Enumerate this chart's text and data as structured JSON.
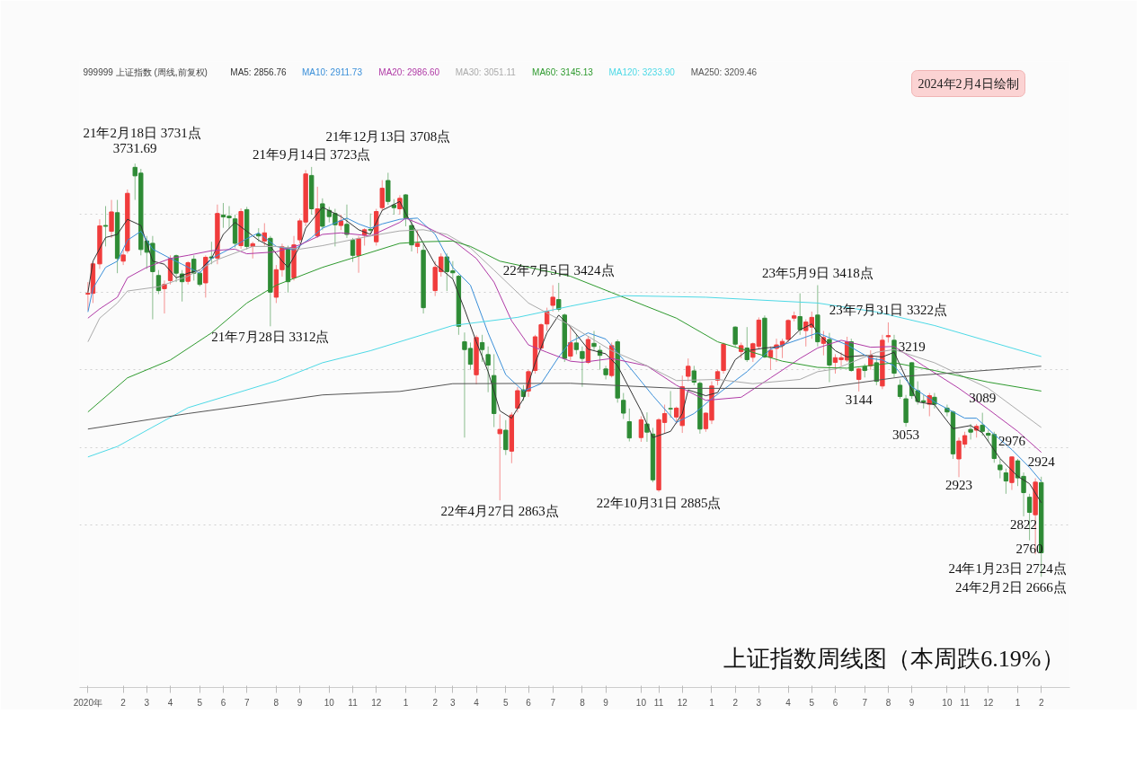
{
  "chart_data": {
    "type": "candlestick",
    "title": "上证指数周线图（本周跌6.19%）",
    "legend_title": "999999 上证指数 (周线,前复权)",
    "legend": "top left",
    "grid": "y",
    "tick_labels": "x",
    "xlim": [
      "2020-12-15",
      "2024-03-07"
    ],
    "yticks": [
      {
        "value": 2800,
        "label": null
      },
      {
        "value": 3000,
        "label": null
      },
      {
        "value": 3200,
        "label": null
      },
      {
        "value": 3400,
        "label": null
      },
      {
        "value": 3600,
        "label": null
      }
    ],
    "xticks": [
      {
        "value": "2020-12-25",
        "label": "2020年"
      },
      {
        "value": "2021-02-05",
        "label": "2"
      },
      {
        "value": "2021-03-05",
        "label": "3"
      },
      {
        "value": "2021-04-02",
        "label": "4"
      },
      {
        "value": "2021-05-07",
        "label": "5"
      },
      {
        "value": "2021-06-04",
        "label": "6"
      },
      {
        "value": "2021-07-02",
        "label": "7"
      },
      {
        "value": "2021-08-06",
        "label": "8"
      },
      {
        "value": "2021-09-03",
        "label": "9"
      },
      {
        "value": "2021-10-08",
        "label": "10"
      },
      {
        "value": "2021-11-05",
        "label": "11"
      },
      {
        "value": "2021-12-03",
        "label": "12"
      },
      {
        "value": "2022-01-07",
        "label": "1"
      },
      {
        "value": "2022-02-11",
        "label": "2"
      },
      {
        "value": "2022-03-04",
        "label": "3"
      },
      {
        "value": "2022-04-01",
        "label": "4"
      },
      {
        "value": "2022-05-06",
        "label": "5"
      },
      {
        "value": "2022-06-02",
        "label": "6"
      },
      {
        "value": "2022-07-01",
        "label": "7"
      },
      {
        "value": "2022-08-05",
        "label": "8"
      },
      {
        "value": "2022-09-02",
        "label": "9"
      },
      {
        "value": "2022-10-14",
        "label": "10"
      },
      {
        "value": "2022-11-04",
        "label": "11"
      },
      {
        "value": "2022-12-02",
        "label": "12"
      },
      {
        "value": "2023-01-06",
        "label": "1"
      },
      {
        "value": "2023-02-03",
        "label": "2"
      },
      {
        "value": "2023-03-03",
        "label": "3"
      },
      {
        "value": "2023-04-07",
        "label": "4"
      },
      {
        "value": "2023-05-05",
        "label": "5"
      },
      {
        "value": "2023-06-02",
        "label": "6"
      },
      {
        "value": "2023-07-07",
        "label": "7"
      },
      {
        "value": "2023-08-04",
        "label": "8"
      },
      {
        "value": "2023-09-01",
        "label": "9"
      },
      {
        "value": "2023-10-13",
        "label": "10"
      },
      {
        "value": "2023-11-03",
        "label": "11"
      },
      {
        "value": "2023-12-01",
        "label": "12"
      },
      {
        "value": "2024-01-05",
        "label": "1"
      },
      {
        "value": "2024-02-02",
        "label": "2"
      }
    ],
    "x": [
      "2020-12-25",
      "2020-12-31",
      "2021-01-08",
      "2021-01-15",
      "2021-01-22",
      "2021-01-29",
      "2021-02-05",
      "2021-02-10",
      "2021-02-19",
      "2021-02-26",
      "2021-03-05",
      "2021-03-12",
      "2021-03-19",
      "2021-03-26",
      "2021-04-02",
      "2021-04-09",
      "2021-04-16",
      "2021-04-23",
      "2021-04-30",
      "2021-05-07",
      "2021-05-14",
      "2021-05-21",
      "2021-05-28",
      "2021-06-04",
      "2021-06-11",
      "2021-06-18",
      "2021-06-25",
      "2021-07-02",
      "2021-07-09",
      "2021-07-16",
      "2021-07-23",
      "2021-07-30",
      "2021-08-06",
      "2021-08-13",
      "2021-08-20",
      "2021-08-27",
      "2021-09-03",
      "2021-09-10",
      "2021-09-17",
      "2021-09-24",
      "2021-09-30",
      "2021-10-08",
      "2021-10-15",
      "2021-10-22",
      "2021-10-29",
      "2021-11-05",
      "2021-11-12",
      "2021-11-19",
      "2021-11-26",
      "2021-12-03",
      "2021-12-10",
      "2021-12-17",
      "2021-12-24",
      "2021-12-31",
      "2022-01-07",
      "2022-01-14",
      "2022-01-21",
      "2022-01-28",
      "2022-02-11",
      "2022-02-18",
      "2022-02-25",
      "2022-03-04",
      "2022-03-11",
      "2022-03-18",
      "2022-03-25",
      "2022-04-01",
      "2022-04-08",
      "2022-04-15",
      "2022-04-22",
      "2022-04-29",
      "2022-05-06",
      "2022-05-13",
      "2022-05-20",
      "2022-05-27",
      "2022-06-02",
      "2022-06-10",
      "2022-06-17",
      "2022-06-24",
      "2022-07-01",
      "2022-07-08",
      "2022-07-15",
      "2022-07-22",
      "2022-07-29",
      "2022-08-05",
      "2022-08-12",
      "2022-08-19",
      "2022-08-26",
      "2022-09-02",
      "2022-09-09",
      "2022-09-16",
      "2022-09-23",
      "2022-09-30",
      "2022-10-14",
      "2022-10-21",
      "2022-10-28",
      "2022-11-04",
      "2022-11-11",
      "2022-11-18",
      "2022-11-25",
      "2022-12-02",
      "2022-12-09",
      "2022-12-16",
      "2022-12-23",
      "2022-12-30",
      "2023-01-06",
      "2023-01-13",
      "2023-01-20",
      "2023-02-03",
      "2023-02-10",
      "2023-02-17",
      "2023-02-24",
      "2023-03-03",
      "2023-03-10",
      "2023-03-17",
      "2023-03-24",
      "2023-03-31",
      "2023-04-07",
      "2023-04-14",
      "2023-04-21",
      "2023-04-28",
      "2023-05-05",
      "2023-05-12",
      "2023-05-19",
      "2023-05-26",
      "2023-06-02",
      "2023-06-09",
      "2023-06-16",
      "2023-06-21",
      "2023-06-30",
      "2023-07-07",
      "2023-07-14",
      "2023-07-21",
      "2023-07-28",
      "2023-08-04",
      "2023-08-11",
      "2023-08-18",
      "2023-08-25",
      "2023-09-01",
      "2023-09-08",
      "2023-09-15",
      "2023-09-22",
      "2023-09-28",
      "2023-10-13",
      "2023-10-20",
      "2023-10-27",
      "2023-11-03",
      "2023-11-10",
      "2023-11-17",
      "2023-11-24",
      "2023-12-01",
      "2023-12-08",
      "2023-12-15",
      "2023-12-22",
      "2023-12-29",
      "2024-01-05",
      "2024-01-12",
      "2024-01-19",
      "2024-01-26",
      "2024-02-02"
    ],
    "ohlc": [
      [
        3395,
        3426,
        3353,
        3397
      ],
      [
        3397,
        3476,
        3372,
        3473
      ],
      [
        3473,
        3588,
        3460,
        3571
      ],
      [
        3572,
        3622,
        3518,
        3570
      ],
      [
        3557,
        3638,
        3540,
        3607
      ],
      [
        3605,
        3638,
        3449,
        3487
      ],
      [
        3480,
        3510,
        3470,
        3496
      ],
      [
        3507,
        3665,
        3500,
        3655
      ],
      [
        3722,
        3731.69,
        3638,
        3700
      ],
      [
        3707,
        3718,
        3495,
        3510
      ],
      [
        3532,
        3545,
        3460,
        3503
      ],
      [
        3526,
        3545,
        3330,
        3453
      ],
      [
        3443,
        3457,
        3395,
        3404
      ],
      [
        3409,
        3430,
        3345,
        3420
      ],
      [
        3430,
        3495,
        3420,
        3487
      ],
      [
        3494,
        3497,
        3426,
        3449
      ],
      [
        3447,
        3457,
        3376,
        3427
      ],
      [
        3428,
        3480,
        3420,
        3476
      ],
      [
        3485,
        3495,
        3430,
        3449
      ],
      [
        3449,
        3455,
        3415,
        3420
      ],
      [
        3424,
        3495,
        3386,
        3490
      ],
      [
        3491,
        3530,
        3472,
        3488
      ],
      [
        3488,
        3626,
        3472,
        3603
      ],
      [
        3599,
        3630,
        3566,
        3594
      ],
      [
        3596,
        3622,
        3564,
        3592
      ],
      [
        3589,
        3600,
        3515,
        3526
      ],
      [
        3520,
        3616,
        3512,
        3608
      ],
      [
        3613,
        3620,
        3510,
        3518
      ],
      [
        3518,
        3530,
        3487,
        3525
      ],
      [
        3550,
        3565,
        3530,
        3545
      ],
      [
        3532,
        3578,
        3520,
        3553
      ],
      [
        3539,
        3545,
        3312,
        3400
      ],
      [
        3387,
        3470,
        3372,
        3458
      ],
      [
        3458,
        3525,
        3440,
        3517
      ],
      [
        3514,
        3520,
        3399,
        3427
      ],
      [
        3437,
        3545,
        3430,
        3522
      ],
      [
        3535,
        3590,
        3525,
        3584
      ],
      [
        3581,
        3715,
        3570,
        3705
      ],
      [
        3701,
        3723,
        3600,
        3615
      ],
      [
        3545,
        3672,
        3540,
        3615
      ],
      [
        3628,
        3642,
        3560,
        3570
      ],
      [
        3611,
        3620,
        3580,
        3595
      ],
      [
        3603,
        3615,
        3518,
        3574
      ],
      [
        3572,
        3600,
        3560,
        3584
      ],
      [
        3575,
        3626,
        3540,
        3549
      ],
      [
        3534,
        3540,
        3478,
        3495
      ],
      [
        3495,
        3545,
        3450,
        3538
      ],
      [
        3547,
        3565,
        3520,
        3561
      ],
      [
        3562,
        3603,
        3550,
        3560
      ],
      [
        3530,
        3615,
        3520,
        3608
      ],
      [
        3618,
        3689,
        3610,
        3668
      ],
      [
        3688,
        3708,
        3625,
        3634
      ],
      [
        3625,
        3640,
        3600,
        3618
      ],
      [
        3615,
        3650,
        3600,
        3642
      ],
      [
        3651,
        3653,
        3570,
        3591
      ],
      [
        3572,
        3590,
        3505,
        3522
      ],
      [
        3518,
        3560,
        3500,
        3526
      ],
      [
        3508,
        3525,
        3345,
        3360
      ],
      [
        3404,
        3480,
        3390,
        3464
      ],
      [
        3453,
        3500,
        3440,
        3491
      ],
      [
        3491,
        3500,
        3403,
        3453
      ],
      [
        3455,
        3480,
        3435,
        3450
      ],
      [
        3441,
        3445,
        3290,
        3312
      ],
      [
        3272,
        3296,
        3025,
        3252
      ],
      [
        3255,
        3270,
        3200,
        3214
      ],
      [
        3187,
        3289,
        3162,
        3283
      ],
      [
        3270,
        3290,
        3220,
        3252
      ],
      [
        3239,
        3260,
        3142,
        3212
      ],
      [
        3185,
        3240,
        3052,
        3087
      ],
      [
        3035,
        3085,
        2863,
        3046
      ],
      [
        3044,
        3070,
        2980,
        2994
      ],
      [
        2990,
        3090,
        2959,
        3083
      ],
      [
        3101,
        3155,
        3090,
        3146
      ],
      [
        3148,
        3160,
        3120,
        3131
      ],
      [
        3145,
        3200,
        3130,
        3195
      ],
      [
        3198,
        3290,
        3190,
        3285
      ],
      [
        3256,
        3320,
        3250,
        3316
      ],
      [
        3318,
        3360,
        3300,
        3351
      ],
      [
        3366,
        3418,
        3350,
        3387
      ],
      [
        3381,
        3424,
        3350,
        3356
      ],
      [
        3341,
        3345,
        3220,
        3229
      ],
      [
        3235,
        3310,
        3225,
        3270
      ],
      [
        3269,
        3290,
        3240,
        3252
      ],
      [
        3247,
        3260,
        3156,
        3229
      ],
      [
        3219,
        3285,
        3215,
        3278
      ],
      [
        3268,
        3300,
        3250,
        3260
      ],
      [
        3250,
        3262,
        3200,
        3237
      ],
      [
        3202,
        3210,
        3175,
        3187
      ],
      [
        3185,
        3270,
        3180,
        3262
      ],
      [
        3272,
        3278,
        3115,
        3127
      ],
      [
        3121,
        3140,
        3073,
        3088
      ],
      [
        3066,
        3100,
        3015,
        3024
      ],
      [
        3025,
        3080,
        3014,
        3071
      ],
      [
        3060,
        3090,
        3014,
        3039
      ],
      [
        3034,
        3050,
        2910,
        2916
      ],
      [
        2890,
        3075,
        2885,
        3071
      ],
      [
        3064,
        3110,
        3035,
        3087
      ],
      [
        3100,
        3145,
        3076,
        3099
      ],
      [
        3078,
        3105,
        3060,
        3101
      ],
      [
        3056,
        3185,
        3037,
        3156
      ],
      [
        3183,
        3229,
        3170,
        3209
      ],
      [
        3197,
        3210,
        3160,
        3168
      ],
      [
        3165,
        3170,
        3035,
        3047
      ],
      [
        3048,
        3090,
        3040,
        3088
      ],
      [
        3070,
        3170,
        3060,
        3158
      ],
      [
        3173,
        3200,
        3160,
        3195
      ],
      [
        3198,
        3270,
        3190,
        3266
      ],
      [
        3310,
        3312,
        3260,
        3266
      ],
      [
        3247,
        3270,
        3230,
        3262
      ],
      [
        3256,
        3310,
        3220,
        3226
      ],
      [
        3232,
        3270,
        3220,
        3267
      ],
      [
        3260,
        3335,
        3255,
        3328
      ],
      [
        3333,
        3340,
        3230,
        3233
      ],
      [
        3232,
        3260,
        3200,
        3250
      ],
      [
        3255,
        3280,
        3220,
        3264
      ],
      [
        3263,
        3280,
        3230,
        3273
      ],
      [
        3278,
        3330,
        3270,
        3327
      ],
      [
        3333,
        3350,
        3325,
        3339
      ],
      [
        3337,
        3397,
        3290,
        3303
      ],
      [
        3301,
        3330,
        3260,
        3323
      ],
      [
        3310,
        3350,
        3280,
        3335
      ],
      [
        3341,
        3418,
        3260,
        3272
      ],
      [
        3268,
        3300,
        3237,
        3283
      ],
      [
        3278,
        3295,
        3168,
        3212
      ],
      [
        3219,
        3240,
        3190,
        3231
      ],
      [
        3226,
        3245,
        3210,
        3231
      ],
      [
        3225,
        3285,
        3220,
        3272
      ],
      [
        3272,
        3280,
        3195,
        3198
      ],
      [
        3175,
        3205,
        3144,
        3202
      ],
      [
        3208,
        3215,
        3180,
        3198
      ],
      [
        3210,
        3250,
        3200,
        3237
      ],
      [
        3218,
        3230,
        3160,
        3170
      ],
      [
        3158,
        3290,
        3150,
        3276
      ],
      [
        3285,
        3322,
        3270,
        3288
      ],
      [
        3276,
        3290,
        3180,
        3191
      ],
      [
        3160,
        3175,
        3125,
        3131
      ],
      [
        3125,
        3135,
        3053,
        3064
      ],
      [
        3218,
        3219,
        3125,
        3133
      ],
      [
        3146,
        3170,
        3110,
        3118
      ],
      [
        3120,
        3135,
        3100,
        3117
      ],
      [
        3111,
        3140,
        3080,
        3133
      ],
      [
        3129,
        3140,
        3100,
        3111
      ],
      [
        3101,
        3110,
        3080,
        3091
      ],
      [
        3091,
        3095,
        2970,
        2983
      ],
      [
        2970,
        3025,
        2923,
        3016
      ],
      [
        3008,
        3040,
        3000,
        3030
      ],
      [
        3046,
        3060,
        3020,
        3039
      ],
      [
        3044,
        3060,
        3025,
        3054
      ],
      [
        3057,
        3089,
        3030,
        3041
      ],
      [
        3036,
        3045,
        3015,
        3031
      ],
      [
        3033,
        3040,
        2960,
        2971
      ],
      [
        2954,
        2970,
        2920,
        2942
      ],
      [
        2934,
        2945,
        2880,
        2913
      ],
      [
        2909,
        2976,
        2890,
        2975
      ],
      [
        2965,
        2970,
        2900,
        2921
      ],
      [
        2925,
        2935,
        2822,
        2883
      ],
      [
        2871,
        2880,
        2760,
        2832
      ],
      [
        2826,
        2920,
        2724,
        2910
      ],
      [
        2909,
        2924,
        2666,
        2728
      ]
    ],
    "colors": [
      "#f03c3c",
      "#f03c3c",
      "#f03c3c",
      "#2e8b35",
      "#f03c3c",
      "#2e8b35",
      "#f03c3c",
      "#f03c3c",
      "#2e8b35",
      "#2e8b35",
      "#2e8b35",
      "#2e8b35",
      "#2e8b35",
      "#f03c3c",
      "#f03c3c",
      "#2e8b35",
      "#2e8b35",
      "#f03c3c",
      "#2e8b35",
      "#2e8b35",
      "#f03c3c",
      "#2e8b35",
      "#f03c3c",
      "#2e8b35",
      "#2e8b35",
      "#2e8b35",
      "#f03c3c",
      "#2e8b35",
      "#f03c3c",
      "#2e8b35",
      "#f03c3c",
      "#2e8b35",
      "#f03c3c",
      "#f03c3c",
      "#2e8b35",
      "#f03c3c",
      "#f03c3c",
      "#f03c3c",
      "#2e8b35",
      "#f03c3c",
      "#2e8b35",
      "#2e8b35",
      "#2e8b35",
      "#f03c3c",
      "#2e8b35",
      "#2e8b35",
      "#f03c3c",
      "#f03c3c",
      "#2e8b35",
      "#f03c3c",
      "#f03c3c",
      "#2e8b35",
      "#2e8b35",
      "#f03c3c",
      "#2e8b35",
      "#2e8b35",
      "#f03c3c",
      "#2e8b35",
      "#f03c3c",
      "#f03c3c",
      "#2e8b35",
      "#2e8b35",
      "#2e8b35",
      "#2e8b35",
      "#2e8b35",
      "#f03c3c",
      "#2e8b35",
      "#2e8b35",
      "#2e8b35",
      "#f03c3c",
      "#2e8b35",
      "#f03c3c",
      "#f03c3c",
      "#2e8b35",
      "#f03c3c",
      "#f03c3c",
      "#f03c3c",
      "#f03c3c",
      "#f03c3c",
      "#2e8b35",
      "#2e8b35",
      "#f03c3c",
      "#2e8b35",
      "#2e8b35",
      "#f03c3c",
      "#2e8b35",
      "#2e8b35",
      "#2e8b35",
      "#f03c3c",
      "#2e8b35",
      "#2e8b35",
      "#2e8b35",
      "#f03c3c",
      "#2e8b35",
      "#2e8b35",
      "#f03c3c",
      "#f03c3c",
      "#2e8b35",
      "#f03c3c",
      "#f03c3c",
      "#f03c3c",
      "#2e8b35",
      "#2e8b35",
      "#f03c3c",
      "#f03c3c",
      "#f03c3c",
      "#f03c3c",
      "#2e8b35",
      "#f03c3c",
      "#2e8b35",
      "#f03c3c",
      "#f03c3c",
      "#2e8b35",
      "#f03c3c",
      "#f03c3c",
      "#f03c3c",
      "#f03c3c",
      "#f03c3c",
      "#2e8b35",
      "#f03c3c",
      "#f03c3c",
      "#2e8b35",
      "#f03c3c",
      "#2e8b35",
      "#f03c3c",
      "#f03c3c",
      "#f03c3c",
      "#2e8b35",
      "#f03c3c",
      "#2e8b35",
      "#f03c3c",
      "#2e8b35",
      "#f03c3c",
      "#f03c3c",
      "#2e8b35",
      "#2e8b35",
      "#2e8b35",
      "#2e8b35",
      "#2e8b35",
      "#2e8b35",
      "#f03c3c",
      "#2e8b35",
      "#2e8b35",
      "#2e8b35",
      "#f03c3c",
      "#f03c3c",
      "#2e8b35",
      "#f03c3c",
      "#2e8b35",
      "#2e8b35",
      "#2e8b35",
      "#2e8b35",
      "#2e8b35",
      "#f03c3c",
      "#2e8b35",
      "#2e8b35",
      "#2e8b35",
      "#f03c3c",
      "#2e8b35"
    ],
    "series": [
      {
        "type": "line",
        "name": "MA5: 2856.76",
        "color": "#333333",
        "x": [
          "2020-12-25",
          "2020-12-31",
          "2021-01-15",
          "2021-01-29",
          "2021-02-10",
          "2021-02-26",
          "2021-03-12",
          "2021-03-26",
          "2021-04-09",
          "2021-04-23",
          "2021-05-07",
          "2021-05-21",
          "2021-06-04",
          "2021-06-18",
          "2021-07-02",
          "2021-07-16",
          "2021-07-30",
          "2021-08-13",
          "2021-08-20",
          "2021-09-03",
          "2021-09-10",
          "2021-09-24",
          "2021-09-30",
          "2021-10-22",
          "2021-11-12",
          "2021-11-26",
          "2021-12-10",
          "2021-12-31",
          "2022-01-07",
          "2022-01-28",
          "2022-02-11",
          "2022-03-04",
          "2022-03-18",
          "2022-04-01",
          "2022-04-15",
          "2022-04-29",
          "2022-05-13",
          "2022-05-27",
          "2022-06-10",
          "2022-06-24",
          "2022-07-08",
          "2022-07-22",
          "2022-08-12",
          "2022-09-02",
          "2022-09-16",
          "2022-10-14",
          "2022-10-28",
          "2022-11-18",
          "2022-12-02",
          "2022-12-09",
          "2022-12-30",
          "2023-01-13",
          "2023-02-03",
          "2023-02-17",
          "2023-03-10",
          "2023-03-31",
          "2023-04-21",
          "2023-05-05",
          "2023-05-12",
          "2023-06-02",
          "2023-06-16",
          "2023-07-07",
          "2023-07-28",
          "2023-08-11",
          "2023-08-25",
          "2023-09-08",
          "2023-09-28",
          "2023-10-20",
          "2023-11-10",
          "2023-11-24",
          "2023-12-15",
          "2024-01-05",
          "2024-01-19",
          "2024-02-02"
        ],
        "values": [
          3399,
          3480,
          3541,
          3549,
          3588,
          3572,
          3480,
          3472,
          3437,
          3449,
          3457,
          3487,
          3549,
          3580,
          3557,
          3534,
          3518,
          3480,
          3464,
          3518,
          3565,
          3603,
          3619,
          3595,
          3561,
          3549,
          3611,
          3634,
          3603,
          3526,
          3472,
          3434,
          3356,
          3272,
          3195,
          3094,
          3075,
          3125,
          3218,
          3295,
          3341,
          3310,
          3253,
          3241,
          3210,
          3094,
          3025,
          3041,
          3087,
          3148,
          3133,
          3141,
          3226,
          3249,
          3256,
          3260,
          3303,
          3318,
          3295,
          3249,
          3233,
          3237,
          3233,
          3245,
          3179,
          3117,
          3110,
          3048,
          3056,
          3037,
          2971,
          2925,
          2906,
          2857
        ]
      },
      {
        "type": "line",
        "name": "MA10: 2911.73",
        "color": "#3a8fd9",
        "x": [
          "2020-12-25",
          "2020-12-31",
          "2021-01-15",
          "2021-01-29",
          "2021-02-10",
          "2021-02-26",
          "2021-03-12",
          "2021-04-02",
          "2021-04-16",
          "2021-05-07",
          "2021-05-21",
          "2021-06-11",
          "2021-07-02",
          "2021-07-16",
          "2021-08-06",
          "2021-08-27",
          "2021-09-17",
          "2021-09-30",
          "2021-10-29",
          "2021-11-12",
          "2021-11-26",
          "2021-12-10",
          "2021-12-31",
          "2022-01-21",
          "2022-02-11",
          "2022-03-04",
          "2022-03-25",
          "2022-04-15",
          "2022-05-06",
          "2022-05-27",
          "2022-06-17",
          "2022-07-08",
          "2022-07-22",
          "2022-08-12",
          "2022-09-02",
          "2022-09-23",
          "2022-10-28",
          "2022-11-25",
          "2022-12-16",
          "2023-01-06",
          "2023-02-03",
          "2023-02-17",
          "2023-03-17",
          "2023-04-21",
          "2023-05-12",
          "2023-06-16",
          "2023-07-14",
          "2023-07-28",
          "2023-08-11",
          "2023-09-01",
          "2023-09-28",
          "2023-11-03",
          "2023-11-17",
          "2023-12-08",
          "2023-12-29",
          "2024-01-19",
          "2024-02-02"
        ],
        "values": [
          3349,
          3410,
          3464,
          3480,
          3534,
          3557,
          3511,
          3487,
          3472,
          3449,
          3487,
          3511,
          3538,
          3553,
          3518,
          3509,
          3541,
          3565,
          3591,
          3576,
          3565,
          3576,
          3588,
          3591,
          3549,
          3464,
          3418,
          3295,
          3187,
          3145,
          3164,
          3233,
          3272,
          3295,
          3279,
          3226,
          3133,
          3064,
          3087,
          3125,
          3172,
          3195,
          3253,
          3279,
          3295,
          3264,
          3229,
          3225,
          3210,
          3156,
          3117,
          3075,
          3075,
          3033,
          2994,
          2948,
          2912
        ]
      },
      {
        "type": "line",
        "name": "MA20: 2986.60",
        "color": "#b03aa6",
        "x": [
          "2020-12-25",
          "2021-01-08",
          "2021-01-29",
          "2021-02-10",
          "2021-03-05",
          "2021-04-02",
          "2021-04-23",
          "2021-05-21",
          "2021-06-18",
          "2021-07-02",
          "2021-08-06",
          "2021-09-03",
          "2021-09-30",
          "2021-10-22",
          "2021-11-26",
          "2021-12-31",
          "2022-01-07",
          "2022-01-28",
          "2022-03-04",
          "2022-04-01",
          "2022-04-22",
          "2022-05-13",
          "2022-06-02",
          "2022-06-24",
          "2022-07-22",
          "2022-08-05",
          "2022-09-09",
          "2022-10-21",
          "2022-11-25",
          "2022-12-30",
          "2023-02-10",
          "2023-03-17",
          "2023-04-21",
          "2023-05-12",
          "2023-06-09",
          "2023-07-14",
          "2023-08-11",
          "2023-09-15",
          "2023-10-27",
          "2023-12-01",
          "2024-01-05",
          "2024-02-02"
        ],
        "values": [
          3333,
          3357,
          3387,
          3437,
          3464,
          3487,
          3495,
          3507,
          3511,
          3499,
          3504,
          3522,
          3549,
          3553,
          3545,
          3580,
          3591,
          3572,
          3534,
          3487,
          3426,
          3326,
          3264,
          3245,
          3222,
          3219,
          3229,
          3210,
          3160,
          3121,
          3129,
          3179,
          3229,
          3256,
          3276,
          3258,
          3260,
          3210,
          3152,
          3098,
          3041,
          2987
        ]
      },
      {
        "type": "line",
        "name": "MA30: 3051.11",
        "color": "#aaaaaa",
        "x": [
          "2020-12-25",
          "2021-01-08",
          "2021-01-29",
          "2021-02-10",
          "2021-03-19",
          "2021-04-23",
          "2021-05-28",
          "2021-07-09",
          "2021-08-06",
          "2021-09-03",
          "2021-09-30",
          "2021-11-26",
          "2021-12-31",
          "2022-01-28",
          "2022-02-25",
          "2022-03-25",
          "2022-04-22",
          "2022-06-02",
          "2022-07-22",
          "2022-09-09",
          "2022-10-21",
          "2022-11-25",
          "2023-01-13",
          "2023-02-24",
          "2023-04-21",
          "2023-05-12",
          "2023-06-02",
          "2023-07-21",
          "2023-08-11",
          "2023-09-28",
          "2023-12-01",
          "2024-02-02"
        ],
        "values": [
          3272,
          3333,
          3372,
          3403,
          3414,
          3441,
          3484,
          3518,
          3518,
          3511,
          3520,
          3545,
          3558,
          3561,
          3549,
          3514,
          3457,
          3372,
          3314,
          3249,
          3210,
          3172,
          3175,
          3164,
          3175,
          3195,
          3202,
          3245,
          3252,
          3218,
          3152,
          3051
        ]
      },
      {
        "type": "line",
        "name": "MA60: 3145.13",
        "color": "#2e9a2e",
        "x": [
          "2020-12-25",
          "2021-02-10",
          "2021-04-02",
          "2021-05-21",
          "2021-07-02",
          "2021-08-06",
          "2021-09-30",
          "2021-12-31",
          "2022-01-28",
          "2022-03-04",
          "2022-03-25",
          "2022-04-29",
          "2022-07-22",
          "2022-09-09",
          "2022-11-25",
          "2023-01-13",
          "2023-03-31",
          "2023-05-12",
          "2023-06-16",
          "2023-08-11",
          "2023-09-28",
          "2023-12-01",
          "2024-02-02"
        ],
        "values": [
          3091,
          3179,
          3225,
          3295,
          3372,
          3418,
          3464,
          3526,
          3530,
          3532,
          3518,
          3480,
          3441,
          3399,
          3333,
          3272,
          3222,
          3206,
          3204,
          3218,
          3198,
          3168,
          3145
        ]
      },
      {
        "type": "line",
        "name": "MA120: 3233.90",
        "color": "#4dd9e6",
        "x": [
          "2020-12-25",
          "2021-01-29",
          "2021-04-23",
          "2021-08-06",
          "2021-09-30",
          "2021-11-26",
          "2022-03-04",
          "2022-05-20",
          "2022-07-22",
          "2022-09-23",
          "2022-12-30",
          "2023-05-12",
          "2023-07-21",
          "2023-09-28",
          "2024-02-02"
        ],
        "values": [
          2975,
          3002,
          3102,
          3171,
          3218,
          3249,
          3314,
          3335,
          3364,
          3391,
          3387,
          3372,
          3349,
          3314,
          3234
        ]
      },
      {
        "type": "line",
        "name": "MA250: 3209.46",
        "color": "#555555",
        "x": [
          "2020-12-25",
          "2021-04-23",
          "2021-09-30",
          "2021-12-31",
          "2022-03-04",
          "2022-07-22",
          "2022-11-25",
          "2023-05-12",
          "2023-08-25",
          "2024-02-02"
        ],
        "values": [
          3047,
          3087,
          3135,
          3144,
          3164,
          3165,
          3152,
          3152,
          3183,
          3209
        ]
      }
    ],
    "annotations": [
      "2024年2月4日绘制",
      {
        "text": "3731.69",
        "x": "2021-02-19",
        "y": 3731.69
      },
      {
        "text": "3219",
        "x": "2023-09-01",
        "y": 3219
      },
      {
        "text": "3144",
        "x": "2023-06-30",
        "y": 3144
      },
      {
        "text": "3053",
        "x": "2023-08-25",
        "y": 3053
      },
      {
        "text": "3089",
        "x": "2023-11-24",
        "y": 3089
      },
      {
        "text": "2923",
        "x": "2023-10-27",
        "y": 2923
      },
      {
        "text": "2976",
        "x": "2023-12-29",
        "y": 2976
      },
      {
        "text": "2924",
        "x": "2024-02-02",
        "y": 2924
      },
      {
        "text": "2822",
        "x": "2024-01-12",
        "y": 2822
      },
      {
        "text": "2760",
        "x": "2024-01-19",
        "y": 2760
      },
      {
        "text": "21年2月18日 3731点",
        "x": "2021-02-19",
        "y": 3731
      },
      {
        "text": "21年9月14日 3723点",
        "x": "2021-09-17",
        "y": 3723
      },
      {
        "text": "21年12月13日 3708点",
        "x": "2021-12-17",
        "y": 3708
      },
      {
        "text": "21年7月28日 3312点",
        "x": "2021-07-30",
        "y": 3312
      },
      {
        "text": "22年7月5日 3424点",
        "x": "2022-07-08",
        "y": 3424
      },
      {
        "text": "22年4月27日 2863点",
        "x": "2022-04-29",
        "y": 2863
      },
      {
        "text": "22年10月31日 2885点",
        "x": "2022-11-04",
        "y": 2885
      },
      {
        "text": "23年5月9日 3418点",
        "x": "2023-05-12",
        "y": 3418
      },
      {
        "text": "23年7月31日 3322点",
        "x": "2023-08-04",
        "y": 3322
      },
      {
        "text": "24年1月23日 2724点",
        "x": "2024-01-26",
        "y": 2724
      },
      {
        "text": "24年2月2日 2666点",
        "x": "2024-02-02",
        "y": 2666
      }
    ]
  }
}
